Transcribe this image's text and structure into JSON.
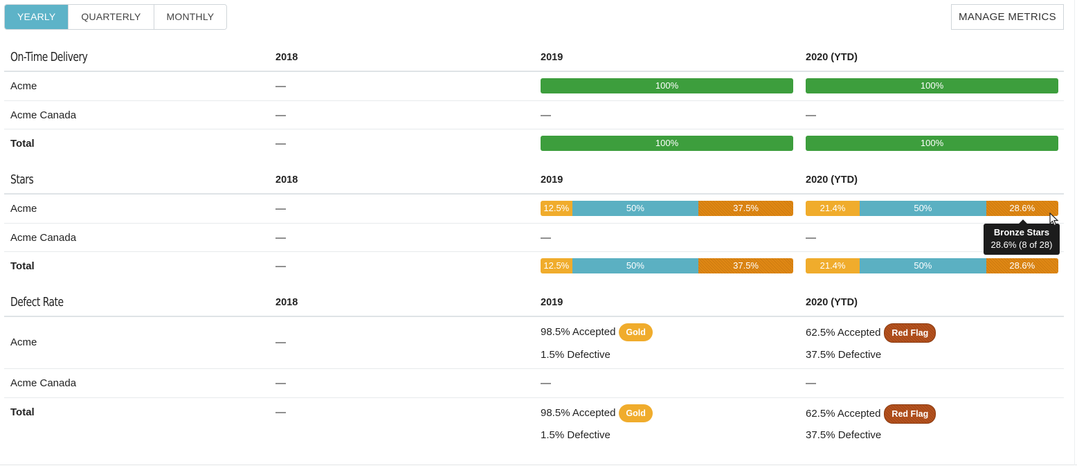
{
  "tabs": [
    {
      "label": "YEARLY",
      "active": true
    },
    {
      "label": "QUARTERLY",
      "active": false
    },
    {
      "label": "MONTHLY",
      "active": false
    }
  ],
  "manage_metrics_label": "MANAGE METRICS",
  "colors": {
    "accent": "#5db3c8",
    "green": "#3d9e3d",
    "gold": "#f0ac2c",
    "silver": "#5bb0c2",
    "bronze": "#e08814",
    "red_flag": "#b5521e"
  },
  "sections": [
    {
      "title": "On-Time Delivery",
      "columns": [
        "2018",
        "2019",
        "2020 (YTD)"
      ],
      "rows": [
        {
          "label": "Acme",
          "c2018": "—",
          "c2019_bar": "100%",
          "c2020_bar": "100%"
        },
        {
          "label": "Acme Canada",
          "c2018": "—",
          "c2019": "—",
          "c2020": "—"
        },
        {
          "label": "Total",
          "c2018": "—",
          "c2019_bar": "100%",
          "c2020_bar": "100%"
        }
      ]
    },
    {
      "title": "Stars",
      "columns": [
        "2018",
        "2019",
        "2020 (YTD)"
      ],
      "rows": [
        {
          "label": "Acme",
          "c2018": "—",
          "c2019_segments": [
            {
              "kind": "gold",
              "value": 12.5,
              "label": "12.5%"
            },
            {
              "kind": "silver",
              "value": 50,
              "label": "50%"
            },
            {
              "kind": "bronze",
              "value": 37.5,
              "label": "37.5%"
            }
          ],
          "c2020_segments": [
            {
              "kind": "gold",
              "value": 21.4,
              "label": "21.4%"
            },
            {
              "kind": "silver",
              "value": 50,
              "label": "50%"
            },
            {
              "kind": "bronze",
              "value": 28.6,
              "label": "28.6%"
            }
          ]
        },
        {
          "label": "Acme Canada",
          "c2018": "—",
          "c2019": "—",
          "c2020": "—"
        },
        {
          "label": "Total",
          "c2018": "—",
          "c2019_segments": [
            {
              "kind": "gold",
              "value": 12.5,
              "label": "12.5%"
            },
            {
              "kind": "silver",
              "value": 50,
              "label": "50%"
            },
            {
              "kind": "bronze",
              "value": 37.5,
              "label": "37.5%"
            }
          ],
          "c2020_segments": [
            {
              "kind": "gold",
              "value": 21.4,
              "label": "21.4%"
            },
            {
              "kind": "silver",
              "value": 50,
              "label": "50%"
            },
            {
              "kind": "bronze",
              "value": 28.6,
              "label": "28.6%"
            }
          ]
        }
      ]
    },
    {
      "title": "Defect Rate",
      "columns": [
        "2018",
        "2019",
        "2020 (YTD)"
      ],
      "rows": [
        {
          "label": "Acme",
          "c2018": "—",
          "c2019_accepted": "98.5% Accepted",
          "c2019_badge": "Gold",
          "c2019_defective": "1.5% Defective",
          "c2020_accepted": "62.5% Accepted",
          "c2020_badge": "Red Flag",
          "c2020_defective": "37.5% Defective"
        },
        {
          "label": "Acme Canada",
          "c2018": "—",
          "c2019": "—",
          "c2020": "—"
        },
        {
          "label": "Total",
          "c2018": "—",
          "c2019_accepted": "98.5% Accepted",
          "c2019_badge": "Gold",
          "c2019_defective": "1.5% Defective",
          "c2020_accepted": "62.5% Accepted",
          "c2020_badge": "Red Flag",
          "c2020_defective": "37.5% Defective"
        }
      ]
    }
  ],
  "tooltip": {
    "title": "Bronze Stars",
    "value": "28.6% (8 of 28)"
  }
}
